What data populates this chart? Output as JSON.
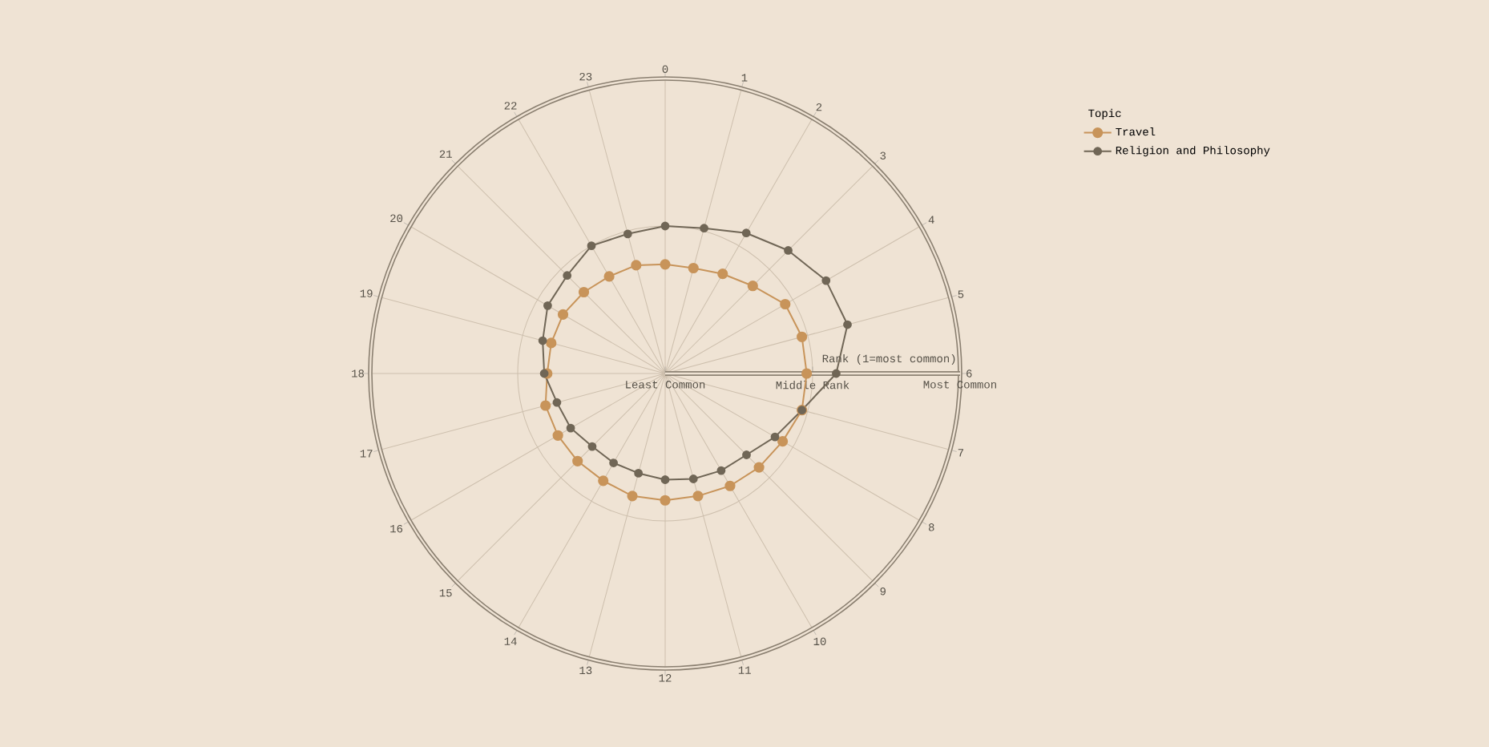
{
  "chart_data": {
    "type": "radar",
    "ylabel": "Rank (1=most common)",
    "legend_title": "Topic",
    "categories": [
      "0",
      "1",
      "2",
      "3",
      "4",
      "5",
      "6",
      "7",
      "8",
      "9",
      "10",
      "11",
      "12",
      "13",
      "14",
      "15",
      "16",
      "17",
      "18",
      "19",
      "20",
      "21",
      "22",
      "23"
    ],
    "ylim": [
      0,
      1
    ],
    "yticks": [
      {
        "value": 0,
        "label": "Least Common"
      },
      {
        "value": 0.5,
        "label": "Middle Rank"
      },
      {
        "value": 1,
        "label": "Most Common"
      }
    ],
    "grid": true,
    "legend": "top right",
    "marker": "circle",
    "series": [
      {
        "name": "Travel",
        "color": "#c8945a",
        "values": [
          0.37,
          0.37,
          0.39,
          0.42,
          0.47,
          0.48,
          0.48,
          0.48,
          0.46,
          0.45,
          0.44,
          0.43,
          0.43,
          0.43,
          0.42,
          0.42,
          0.42,
          0.42,
          0.4,
          0.4,
          0.4,
          0.39,
          0.38,
          0.38
        ]
      },
      {
        "name": "Religion and Philosophy",
        "color": "#706656",
        "values": [
          0.5,
          0.51,
          0.55,
          0.59,
          0.63,
          0.64,
          0.58,
          0.48,
          0.43,
          0.39,
          0.38,
          0.37,
          0.36,
          0.35,
          0.35,
          0.35,
          0.37,
          0.38,
          0.41,
          0.43,
          0.46,
          0.47,
          0.5,
          0.49
        ]
      }
    ]
  }
}
